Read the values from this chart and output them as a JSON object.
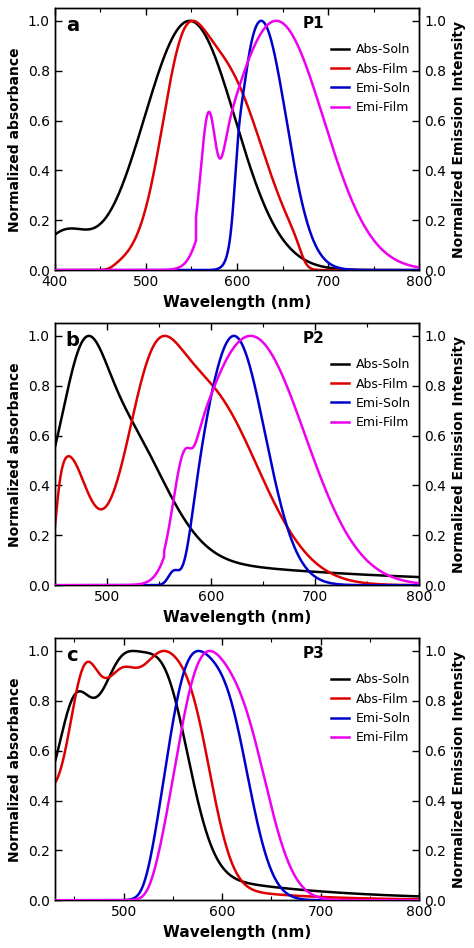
{
  "panels": [
    {
      "label": "a",
      "polymer": "P1",
      "xlim": [
        400,
        800
      ],
      "ylim": [
        0.0,
        1.05
      ],
      "xlabel": "Wavelength (nm)",
      "ylabel_left": "Normalized absorbance",
      "ylabel_right": "Normalized Emission Intensity",
      "legend_entries": [
        "Abs-Soln",
        "Abs-Film",
        "Emi-Soln",
        "Emi-Film"
      ],
      "legend_colors": [
        "#000000",
        "#dd0000",
        "#0000cc",
        "#ee00ee"
      ]
    },
    {
      "label": "b",
      "polymer": "P2",
      "xlim": [
        450,
        800
      ],
      "ylim": [
        0.0,
        1.05
      ],
      "xlabel": "Wavelength (nm)",
      "ylabel_left": "Normalized absorbance",
      "ylabel_right": "Normalized Emission Intensity",
      "legend_entries": [
        "Abs-Soln",
        "Abs-Film",
        "Emi-Soln",
        "Emi-Film"
      ],
      "legend_colors": [
        "#000000",
        "#dd0000",
        "#0000cc",
        "#ee00ee"
      ]
    },
    {
      "label": "c",
      "polymer": "P3",
      "xlim": [
        430,
        800
      ],
      "ylim": [
        0.0,
        1.05
      ],
      "xlabel": "Wavelength (nm)",
      "ylabel_left": "Normalized absorbance",
      "ylabel_right": "Normalized Emission Intensity",
      "legend_entries": [
        "Abs-Soln",
        "Abs-Film",
        "Emi-Soln",
        "Emi-Film"
      ],
      "legend_colors": [
        "#000000",
        "#dd0000",
        "#0000cc",
        "#ee00ee"
      ]
    }
  ],
  "line_width": 1.8,
  "tick_fontsize": 10,
  "label_fontsize": 11,
  "legend_fontsize": 9
}
